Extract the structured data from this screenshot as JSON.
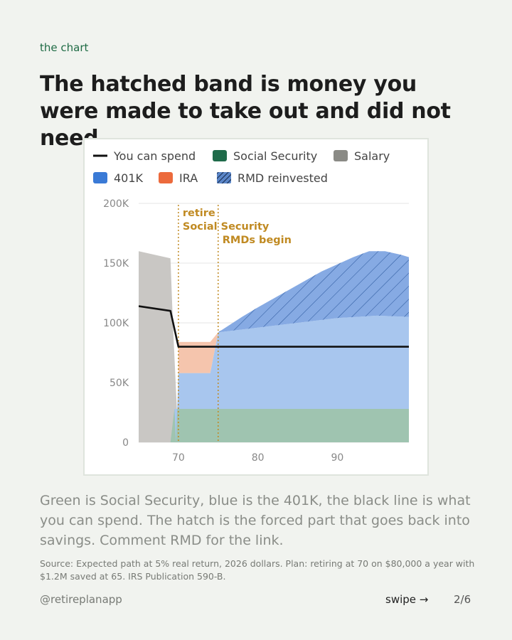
{
  "eyebrow": "the chart",
  "headline": "The hatched band is money you were made to take out and did not need.",
  "body_text": "Green is Social Security, blue is the 401K, the black line is what you can spend. The hatch is the forced part that goes back into savings. Comment RMD for the link.",
  "source_note": "Source: Expected path at 5% real return, 2026 dollars. Plan: retiring at 70 on $80,000 a year with $1.2M saved at 65. IRS Publication 590-B.",
  "footer": {
    "handle": "@retireplanapp",
    "swipe_label": "swipe",
    "swipe_icon": "→",
    "page": "2/6"
  },
  "colors": {
    "salary": "#c9c7c4",
    "social_security": "#9fc4b0",
    "k401": "#a8c6ee",
    "ira": "#f5c5ad",
    "rmd": "#86aae3",
    "spend_line": "#111111",
    "annotation": "#c08a22"
  },
  "chart_data": {
    "type": "area",
    "title": "",
    "xlabel": "",
    "ylabel": "",
    "xlim": [
      65,
      99
    ],
    "ylim": [
      0,
      200000
    ],
    "x_ticks": [
      70,
      80,
      90
    ],
    "x_tick_labels": [
      "70",
      "80",
      "90"
    ],
    "y_ticks": [
      0,
      50000,
      100000,
      150000,
      200000
    ],
    "y_tick_labels": [
      "0",
      "50K",
      "100K",
      "150K",
      "200K"
    ],
    "grid": "horizontal",
    "legend": {
      "position": "top",
      "entries": [
        {
          "key": "spend",
          "label": "You can spend",
          "style": "line"
        },
        {
          "key": "ss",
          "label": "Social Security",
          "color": "#1f6b4a"
        },
        {
          "key": "salary",
          "label": "Salary",
          "color": "#8a8a85"
        },
        {
          "key": "k401",
          "label": "401K",
          "color": "#3a7ad6"
        },
        {
          "key": "ira",
          "label": "IRA",
          "color": "#ec6a3c"
        },
        {
          "key": "rmd",
          "label": "RMD reinvested",
          "style": "hatch",
          "color": "#2d5a9e"
        }
      ]
    },
    "annotations": [
      {
        "x": 70,
        "lines": [
          "retire",
          "Social Security"
        ]
      },
      {
        "x": 75,
        "lines": [
          "RMDs begin"
        ]
      }
    ],
    "series": [
      {
        "name": "Salary",
        "points": [
          [
            65,
            160000
          ],
          [
            69,
            154000
          ],
          [
            69.3,
            100000
          ],
          [
            70,
            0
          ]
        ]
      },
      {
        "name": "Social Security",
        "points": [
          [
            69,
            0
          ],
          [
            69.5,
            28000
          ],
          [
            99,
            28000
          ]
        ]
      },
      {
        "name": "401K",
        "points": [
          [
            69.7,
            0
          ],
          [
            70,
            58000
          ],
          [
            74,
            58000
          ],
          [
            75,
            92000
          ],
          [
            80,
            96000
          ],
          [
            85,
            100000
          ],
          [
            90,
            104000
          ],
          [
            95,
            106000
          ],
          [
            99,
            105000
          ]
        ]
      },
      {
        "name": "IRA",
        "points": [
          [
            70,
            84000
          ],
          [
            74,
            84000
          ],
          [
            75,
            92000
          ]
        ]
      },
      {
        "name": "RMD reinvested",
        "points": [
          [
            75,
            92000
          ],
          [
            78,
            105000
          ],
          [
            80,
            113000
          ],
          [
            84,
            128000
          ],
          [
            88,
            143000
          ],
          [
            92,
            155000
          ],
          [
            94,
            160000
          ],
          [
            96,
            160000
          ],
          [
            98,
            157000
          ],
          [
            99,
            155000
          ]
        ]
      },
      {
        "name": "You can spend",
        "points": [
          [
            65,
            114000
          ],
          [
            69,
            110000
          ],
          [
            70,
            80000
          ],
          [
            99,
            80000
          ]
        ]
      }
    ]
  }
}
